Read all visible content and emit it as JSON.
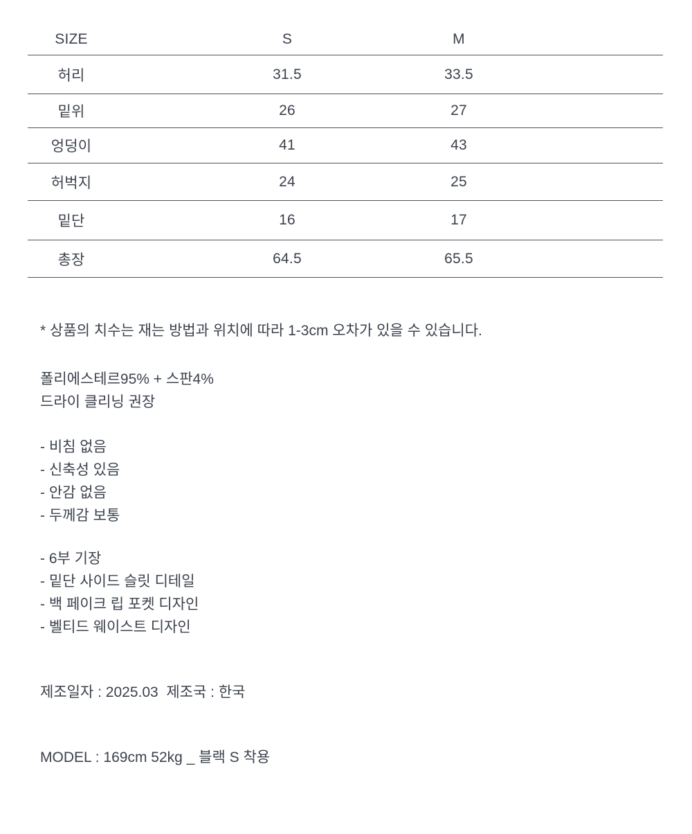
{
  "page": {
    "background": "#ffffff",
    "text_color": "#3b414c",
    "table_line_color": "#4d525b"
  },
  "size_table": {
    "headers": {
      "size": "SIZE",
      "s": "S",
      "m": "M"
    },
    "rows": [
      {
        "label": "허리",
        "s": "31.5",
        "m": "33.5"
      },
      {
        "label": "밑위",
        "s": "26",
        "m": "27"
      },
      {
        "label": "엉덩이",
        "s": "41",
        "m": "43"
      },
      {
        "label": "허벅지",
        "s": "24",
        "m": "25"
      },
      {
        "label": "밑단",
        "s": "16",
        "m": "17"
      },
      {
        "label": "총장",
        "s": "64.5",
        "m": "65.5"
      }
    ]
  },
  "notes": {
    "disclaimer": "* 상품의 치수는 재는 방법과 위치에 따라 1-3cm 오차가 있을 수 있습니다.",
    "fabric": {
      "composition": "폴리에스테르95% + 스판4%",
      "care": "드라이 클리닝 권장"
    },
    "features": [
      "- 비침 없음",
      "- 신축성 있음",
      "- 안감 없음",
      "- 두께감 보통"
    ],
    "details": [
      "- 6부 기장",
      "- 밑단 사이드 슬릿 디테일",
      "- 백 페이크 립 포켓 디자인",
      "- 벨티드 웨이스트 디자인"
    ],
    "manufacture": "제조일자 : 2025.03  제조국 : 한국",
    "model_info": "MODEL : 169cm 52kg _ 블랙 S 착용"
  }
}
